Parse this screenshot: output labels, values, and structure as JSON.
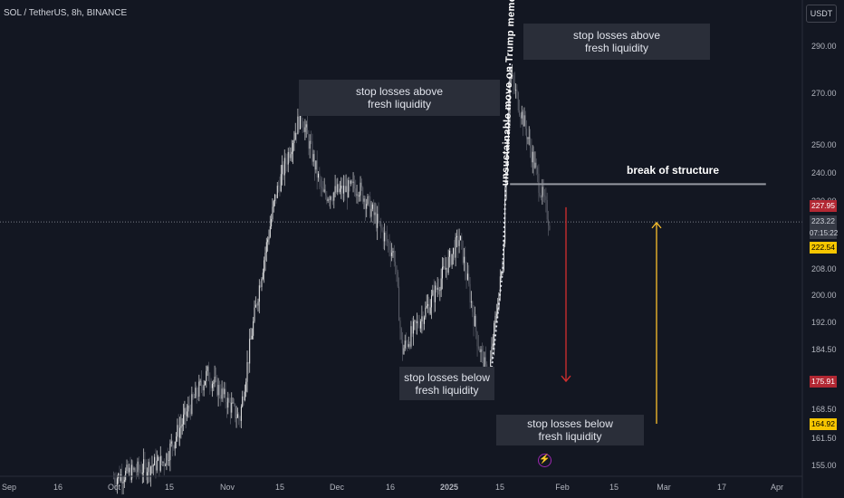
{
  "header": {
    "title": "SOL / TetherUS, 8h, BINANCE",
    "currency_button": "USDT"
  },
  "colors": {
    "background": "#131722",
    "bull": "#ffffff",
    "bear": "#5d606b",
    "red_arrow": "#d32f2f",
    "yellow_arrow": "#fbc02d",
    "structure_line": "#9598a1",
    "dotted_path": "#e0e3eb"
  },
  "chart_data": {
    "type": "candlestick",
    "title": "SOL / TetherUS, 8h, BINANCE",
    "x_tick_labels": [
      "Sep",
      "16",
      "Oct",
      "15",
      "Nov",
      "15",
      "Dec",
      "16",
      "2025",
      "15",
      "Feb",
      "15",
      "Mar",
      "17",
      "Apr"
    ],
    "y_tick_labels": [
      "290.00",
      "270.00",
      "250.00",
      "240.00",
      "230.00",
      "208.00",
      "200.00",
      "192.00",
      "184.50",
      "168.50",
      "161.50",
      "155.00"
    ],
    "y_scale": "log",
    "ylim": [
      152,
      305
    ],
    "price_series": {
      "name": "SOL/USDT close (approx)",
      "dates": [
        "2024-10-01",
        "2024-10-15",
        "2024-10-27",
        "2024-11-05",
        "2024-11-10",
        "2024-11-15",
        "2024-11-22",
        "2024-11-28",
        "2024-12-08",
        "2024-12-18",
        "2024-12-20",
        "2024-12-28",
        "2025-01-05",
        "2025-01-10",
        "2025-01-13",
        "2025-01-17",
        "2025-01-19",
        "2025-01-23",
        "2025-01-27",
        "2025-01-30"
      ],
      "values": [
        152,
        156,
        178,
        166,
        200,
        232,
        262,
        232,
        235,
        212,
        184,
        198,
        218,
        187,
        176,
        210,
        278,
        258,
        236,
        223
      ]
    },
    "current_price": 223.22,
    "countdown": "07:15:22",
    "price_labels": [
      {
        "value": "227.95",
        "style": "red"
      },
      {
        "value": "222.54",
        "style": "yellow"
      },
      {
        "value": "175.91",
        "style": "red"
      },
      {
        "value": "164.92",
        "style": "yellow"
      }
    ],
    "annotations": [
      {
        "text": "stop losses above\nfresh liquidity"
      },
      {
        "text": "stop losses above\nfresh liquidity"
      },
      {
        "text": "stop losses below\nfresh liquidity"
      },
      {
        "text": "stop losses below\nfresh liquidity"
      }
    ],
    "structure_label": "break of structure",
    "structure_level": 236,
    "vertical_note": "unsustainable move on Trump meme coin",
    "projection_arrows": [
      {
        "direction": "down",
        "color": "red",
        "from": 228,
        "to": 176
      },
      {
        "direction": "up",
        "color": "yellow",
        "from": 165,
        "to": 223
      }
    ]
  }
}
